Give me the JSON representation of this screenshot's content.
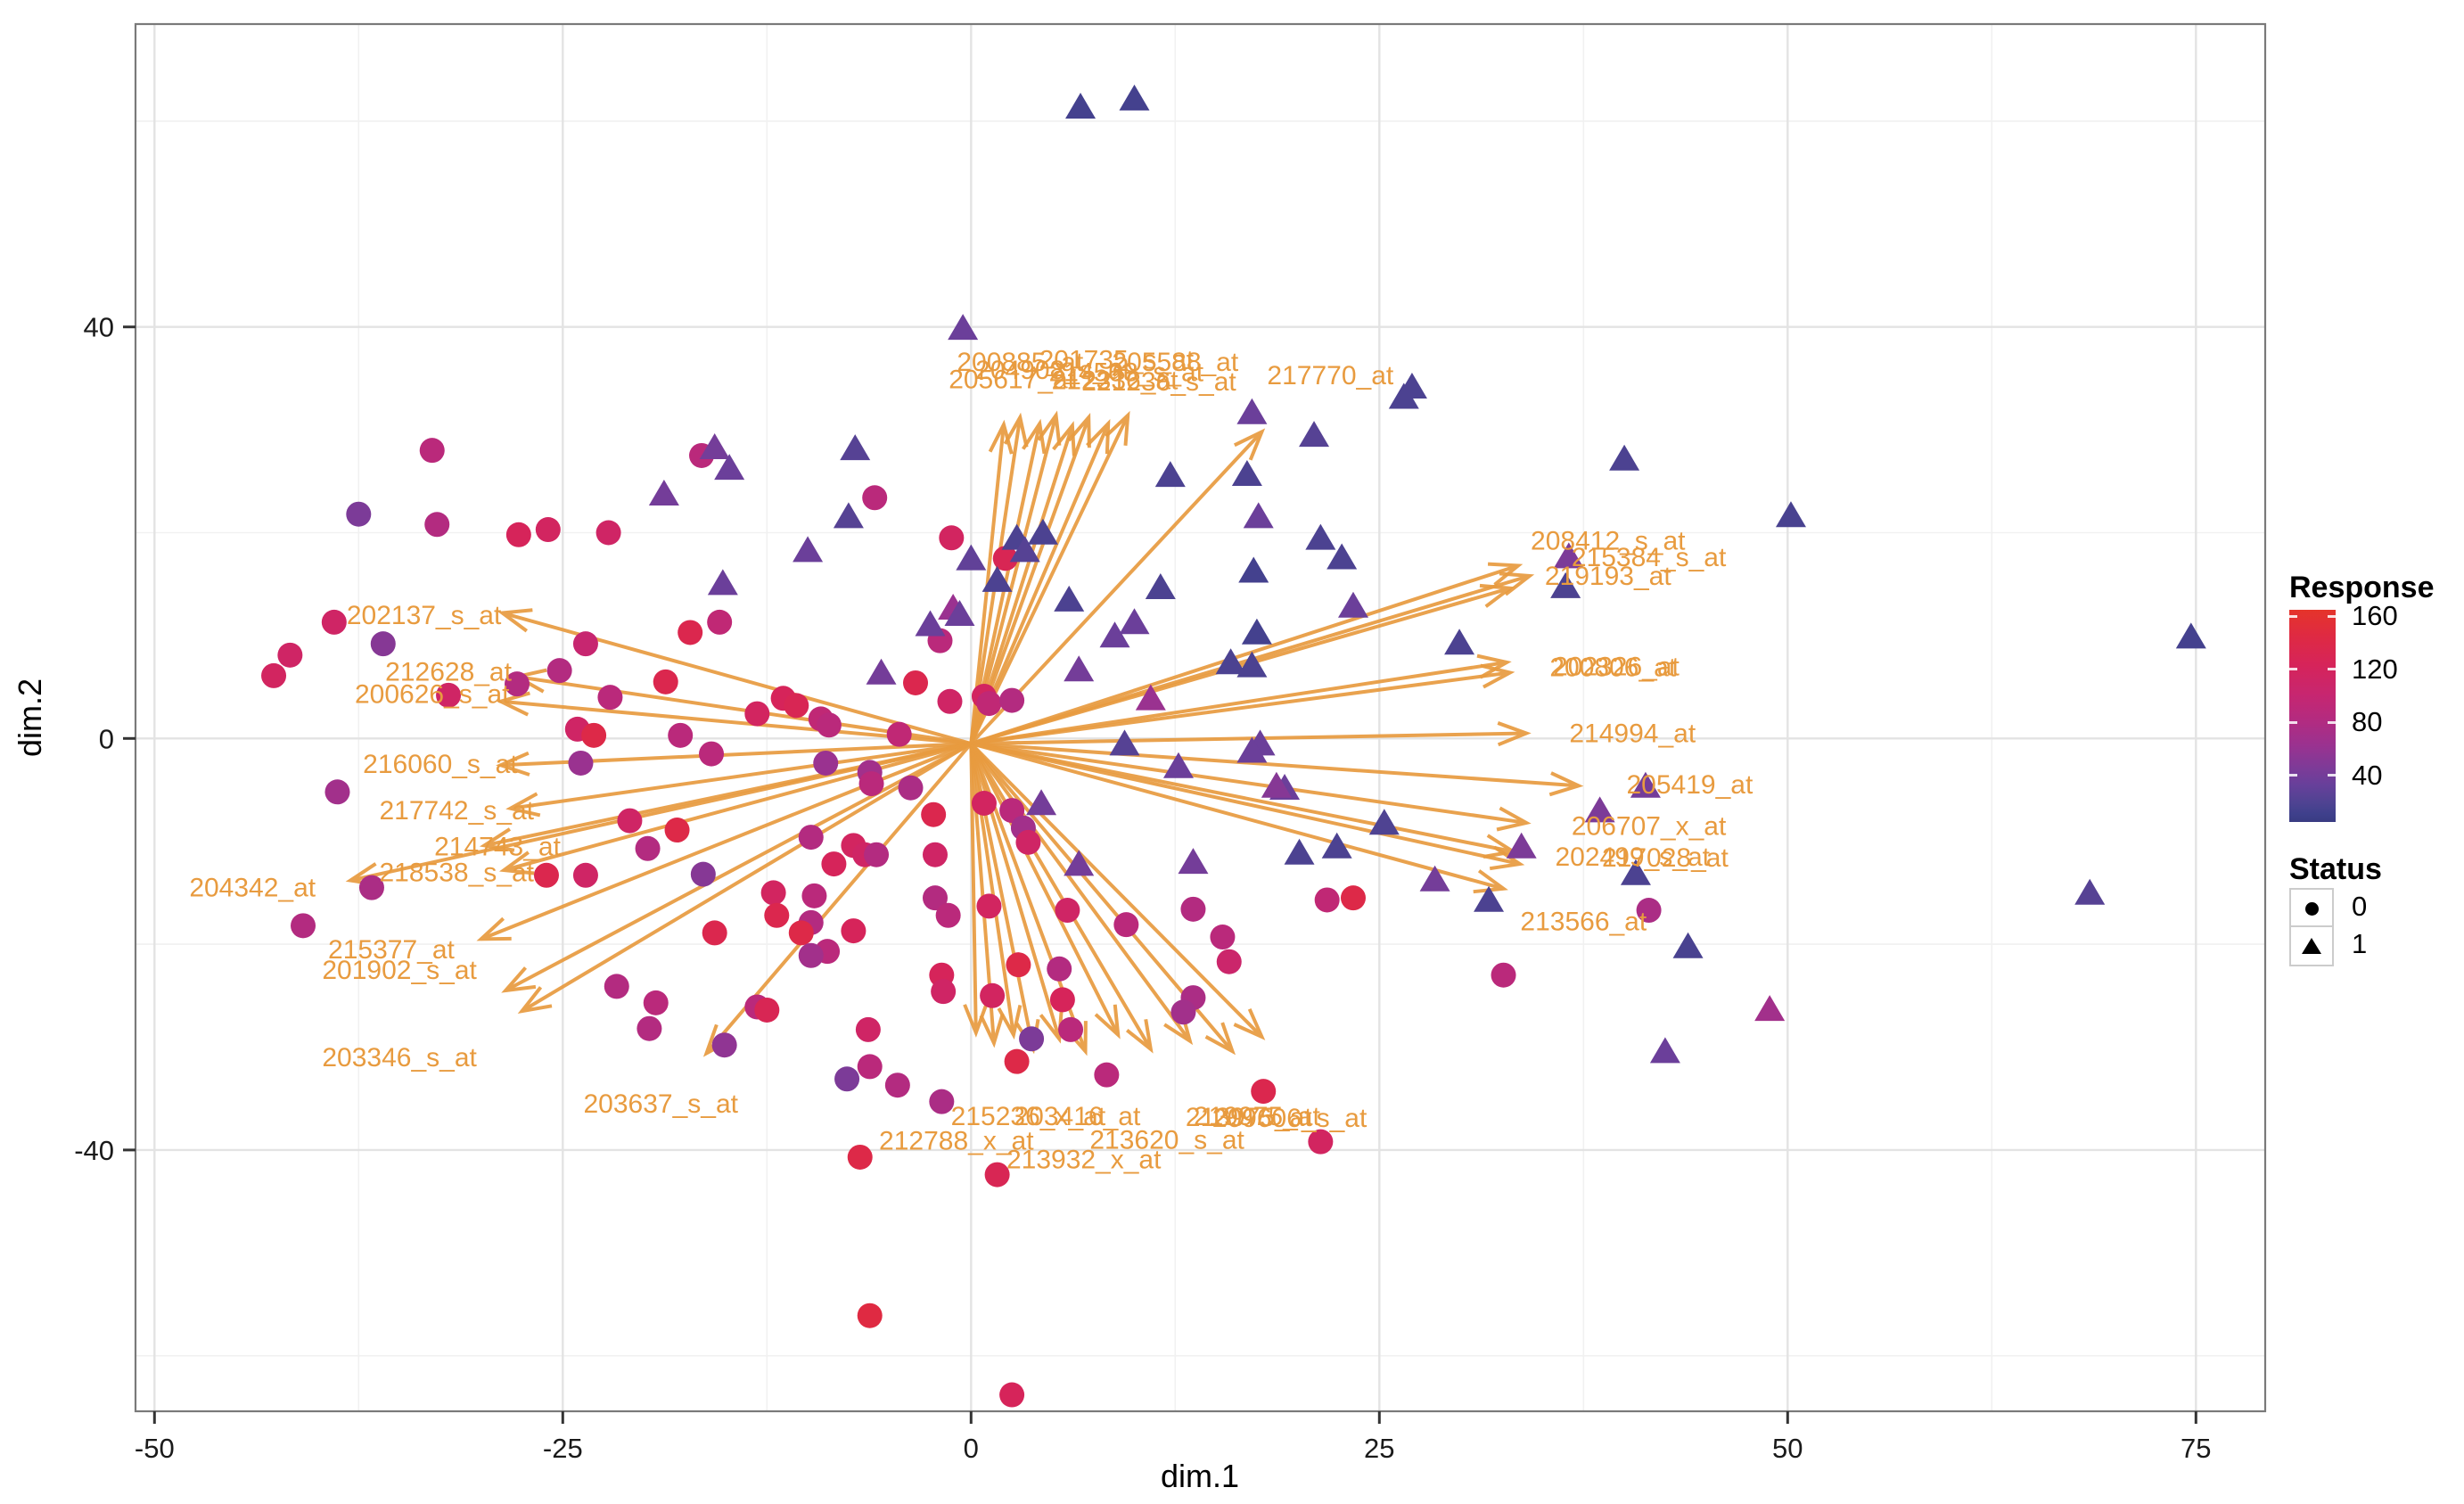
{
  "chart_data": {
    "type": "scatter",
    "title": "",
    "xlabel": "dim.1",
    "ylabel": "dim.2",
    "x_ticks": [
      -50,
      -25,
      0,
      25,
      50,
      75
    ],
    "y_ticks": [
      -40,
      0,
      40
    ],
    "x_minor": [
      -37.5,
      -12.5,
      12.5,
      37.5,
      62.5
    ],
    "y_minor": [
      -60,
      -20,
      20,
      60
    ],
    "xlim": [
      -51.2,
      79.2
    ],
    "ylim": [
      -65.4,
      69.4
    ],
    "grid": true,
    "legend_position": "right",
    "panel": {
      "background": "#FFFFFF",
      "border": "#7A7A7A",
      "grid_major": "#E3E3E3",
      "grid_minor": "#F1F1F1"
    },
    "response_scale": {
      "title": "Response",
      "ticks": [
        160,
        120,
        80,
        40
      ],
      "domain": [
        5,
        165
      ],
      "gradient_stops": [
        [
          165,
          "#E5342A"
        ],
        [
          140,
          "#DF2A42"
        ],
        [
          120,
          "#D6245A"
        ],
        [
          100,
          "#C72670"
        ],
        [
          85,
          "#B32B80"
        ],
        [
          70,
          "#9A3290"
        ],
        [
          55,
          "#7C3B98"
        ],
        [
          42,
          "#66409A"
        ],
        [
          32,
          "#4F4392"
        ],
        [
          22,
          "#3F408C"
        ],
        [
          5,
          "#393B82"
        ]
      ]
    },
    "status_legend": {
      "title": "Status",
      "items": [
        {
          "label": "0",
          "shape": "circle"
        },
        {
          "label": "1",
          "shape": "triangle"
        }
      ]
    },
    "arrow_color": "#E89B3F",
    "label_color": "#E89B3F",
    "arrow_origin": [
      0,
      -0.5
    ],
    "points": [
      [
        -33,
        28,
        90,
        0
      ],
      [
        -37.5,
        21.8,
        55,
        0
      ],
      [
        -32.7,
        20.8,
        85,
        0
      ],
      [
        -27.7,
        19.8,
        120,
        0
      ],
      [
        -25.9,
        20.3,
        115,
        0
      ],
      [
        -22.2,
        20,
        110,
        0
      ],
      [
        -16.5,
        27.5,
        90,
        0
      ],
      [
        -39,
        11.3,
        110,
        0
      ],
      [
        -36,
        9.2,
        60,
        0
      ],
      [
        -41.7,
        8.1,
        110,
        0
      ],
      [
        -42.7,
        6.1,
        115,
        0
      ],
      [
        -32,
        4.2,
        110,
        0
      ],
      [
        -38.8,
        -5.2,
        75,
        0
      ],
      [
        -36.7,
        -14.5,
        80,
        0
      ],
      [
        -40.9,
        -18.2,
        85,
        0
      ],
      [
        -23.6,
        9.2,
        100,
        0
      ],
      [
        -25.2,
        6.6,
        85,
        0
      ],
      [
        -27.8,
        5.3,
        85,
        0
      ],
      [
        -22.1,
        4,
        90,
        0
      ],
      [
        -18.7,
        5.5,
        130,
        0
      ],
      [
        -17.2,
        10.3,
        130,
        0
      ],
      [
        -15.4,
        11.3,
        95,
        0
      ],
      [
        -24.1,
        0.9,
        110,
        0
      ],
      [
        -23.1,
        0.3,
        135,
        0
      ],
      [
        -17.8,
        0.3,
        90,
        0
      ],
      [
        -23.9,
        -2.4,
        70,
        0
      ],
      [
        -15.9,
        -1.5,
        90,
        0
      ],
      [
        -20.9,
        -8,
        110,
        0
      ],
      [
        -18,
        -8.9,
        135,
        0
      ],
      [
        -19.8,
        -10.7,
        85,
        0
      ],
      [
        -26,
        -13.3,
        130,
        0
      ],
      [
        -23.6,
        -13.3,
        110,
        0
      ],
      [
        -16.4,
        -13.2,
        60,
        0
      ],
      [
        -13.1,
        2.4,
        115,
        0
      ],
      [
        -11.5,
        3.9,
        120,
        0
      ],
      [
        -10.7,
        3.2,
        125,
        0
      ],
      [
        -9.2,
        1.9,
        95,
        0
      ],
      [
        -8.7,
        1.3,
        90,
        0
      ],
      [
        -4.4,
        0.4,
        95,
        0
      ],
      [
        -8.9,
        -2.4,
        70,
        0
      ],
      [
        -6.2,
        -3.3,
        75,
        0
      ],
      [
        -6.1,
        -4.4,
        90,
        0
      ],
      [
        -3.7,
        -4.8,
        80,
        0
      ],
      [
        -1.9,
        9.5,
        90,
        0
      ],
      [
        -3.4,
        5.4,
        130,
        0
      ],
      [
        -1.3,
        3.6,
        110,
        0
      ],
      [
        0.8,
        4.1,
        115,
        0
      ],
      [
        1.1,
        3.4,
        95,
        0
      ],
      [
        2.5,
        3.7,
        85,
        0
      ],
      [
        0.8,
        -6.3,
        115,
        0
      ],
      [
        -2.3,
        -7.4,
        130,
        0
      ],
      [
        2.5,
        -7,
        90,
        0
      ],
      [
        3.2,
        -8.7,
        75,
        0
      ],
      [
        3.5,
        -10.1,
        110,
        0
      ],
      [
        -7.2,
        -10.4,
        115,
        0
      ],
      [
        -6.5,
        -11.3,
        110,
        0
      ],
      [
        -5.8,
        -11.3,
        85,
        0
      ],
      [
        -8.4,
        -12.2,
        120,
        0
      ],
      [
        -2.2,
        -11.3,
        110,
        0
      ],
      [
        -9.8,
        -9.6,
        85,
        0
      ],
      [
        -12.1,
        -15,
        115,
        0
      ],
      [
        -11.9,
        -17.2,
        130,
        0
      ],
      [
        -9.6,
        -15.3,
        90,
        0
      ],
      [
        -9.8,
        -17.9,
        85,
        0
      ],
      [
        -10.4,
        -18.9,
        135,
        0
      ],
      [
        -8.8,
        -20.7,
        90,
        0
      ],
      [
        -9.8,
        -21.1,
        75,
        0
      ],
      [
        -7.2,
        -18.7,
        120,
        0
      ],
      [
        -2.2,
        -15.5,
        85,
        0
      ],
      [
        -1.4,
        -17.2,
        90,
        0
      ],
      [
        1.1,
        -16.3,
        115,
        0
      ],
      [
        -1.8,
        -23,
        120,
        0
      ],
      [
        1.3,
        -25,
        115,
        0
      ],
      [
        5.4,
        -22.4,
        85,
        0
      ],
      [
        5.6,
        -25.4,
        120,
        0
      ],
      [
        9.5,
        -18.1,
        90,
        0
      ],
      [
        15.8,
        -21.7,
        105,
        0
      ],
      [
        13.6,
        -25.2,
        80,
        0
      ],
      [
        3.7,
        -29.2,
        55,
        0
      ],
      [
        2.8,
        -31.4,
        135,
        0
      ],
      [
        -7.6,
        -33.1,
        55,
        0
      ],
      [
        -13.1,
        -26.1,
        90,
        0
      ],
      [
        -12.5,
        -26.4,
        125,
        0
      ],
      [
        -1.8,
        -35.3,
        80,
        0
      ],
      [
        -6.3,
        -28.3,
        110,
        0
      ],
      [
        -1.7,
        -24.6,
        110,
        0
      ],
      [
        -6.2,
        -31.9,
        90,
        0
      ],
      [
        -4.5,
        -33.7,
        85,
        0
      ],
      [
        2.9,
        -22,
        135,
        0
      ],
      [
        5.9,
        -16.7,
        110,
        0
      ],
      [
        6.1,
        -28.3,
        90,
        0
      ],
      [
        8.3,
        -32.7,
        90,
        0
      ],
      [
        13.6,
        -16.6,
        85,
        0
      ],
      [
        13,
        -26.6,
        75,
        0
      ],
      [
        17.9,
        -34.3,
        130,
        0
      ],
      [
        21.4,
        -39.2,
        115,
        0
      ],
      [
        -6.8,
        -40.7,
        135,
        0
      ],
      [
        1.6,
        -42.4,
        125,
        0
      ],
      [
        -6.2,
        -56.1,
        140,
        0
      ],
      [
        2.5,
        -63.8,
        120,
        0
      ],
      [
        21.8,
        -15.7,
        95,
        0
      ],
      [
        23.4,
        -15.5,
        135,
        0
      ],
      [
        15.4,
        -19.3,
        90,
        0
      ],
      [
        32.6,
        -23,
        90,
        0
      ],
      [
        41.5,
        -16.7,
        80,
        0
      ],
      [
        -15.7,
        -18.9,
        130,
        0
      ],
      [
        -21.7,
        -24.1,
        85,
        0
      ],
      [
        -19.3,
        -25.7,
        90,
        0
      ],
      [
        -19.7,
        -28.2,
        85,
        0
      ],
      [
        -15.1,
        -29.8,
        65,
        0
      ],
      [
        -1.2,
        19.5,
        115,
        0
      ],
      [
        2.1,
        17.5,
        125,
        0
      ],
      [
        -5.9,
        23.4,
        90,
        0
      ],
      [
        6.7,
        61.2,
        25,
        1
      ],
      [
        10,
        62,
        25,
        1
      ],
      [
        -0.5,
        39.7,
        45,
        1
      ],
      [
        -7.1,
        28,
        35,
        1
      ],
      [
        -15.7,
        28.1,
        50,
        1
      ],
      [
        -14.8,
        26.1,
        45,
        1
      ],
      [
        -18.8,
        23.6,
        50,
        1
      ],
      [
        -10,
        18.1,
        45,
        1
      ],
      [
        -7.5,
        21.4,
        35,
        1
      ],
      [
        0,
        17.3,
        40,
        1
      ],
      [
        -1.1,
        12.5,
        70,
        1
      ],
      [
        2.8,
        19.3,
        30,
        1
      ],
      [
        3.3,
        18.1,
        35,
        1
      ],
      [
        4.4,
        19.8,
        30,
        1
      ],
      [
        12.2,
        25.4,
        30,
        1
      ],
      [
        1.6,
        15.2,
        30,
        1
      ],
      [
        -2.5,
        10.9,
        45,
        1
      ],
      [
        -0.7,
        11.9,
        45,
        1
      ],
      [
        -5.5,
        6.2,
        50,
        1
      ],
      [
        8.8,
        9.8,
        45,
        1
      ],
      [
        10,
        11.1,
        45,
        1
      ],
      [
        6.6,
        6.5,
        50,
        1
      ],
      [
        11,
        3.7,
        70,
        1
      ],
      [
        15.9,
        7.2,
        30,
        1
      ],
      [
        17.2,
        6.9,
        30,
        1
      ],
      [
        9.4,
        -0.7,
        35,
        1
      ],
      [
        12.7,
        -2.9,
        45,
        1
      ],
      [
        17.7,
        -0.7,
        45,
        1
      ],
      [
        19.2,
        -5,
        45,
        1
      ],
      [
        4.3,
        -6.5,
        50,
        1
      ],
      [
        6.6,
        -12.4,
        50,
        1
      ],
      [
        13.6,
        -12.2,
        50,
        1
      ],
      [
        20.1,
        -11.3,
        30,
        1
      ],
      [
        17.6,
        21.4,
        45,
        1
      ],
      [
        21.4,
        19.3,
        30,
        1
      ],
      [
        17.3,
        16.1,
        25,
        1
      ],
      [
        17.5,
        10.1,
        25,
        1
      ],
      [
        26.5,
        33,
        30,
        1
      ],
      [
        17.2,
        31.5,
        45,
        1
      ],
      [
        21,
        29.3,
        35,
        1
      ],
      [
        16.9,
        25.5,
        30,
        1
      ],
      [
        22.7,
        17.4,
        30,
        1
      ],
      [
        23.4,
        12.7,
        45,
        1
      ],
      [
        40,
        27,
        30,
        1
      ],
      [
        50.2,
        21.5,
        28,
        1
      ],
      [
        36.6,
        17.5,
        55,
        1
      ],
      [
        36.4,
        14.6,
        30,
        1
      ],
      [
        29.9,
        9.1,
        30,
        1
      ],
      [
        17.2,
        -1.4,
        45,
        1
      ],
      [
        18.7,
        -4.8,
        60,
        1
      ],
      [
        41.3,
        -4.8,
        50,
        1
      ],
      [
        38.5,
        -7.2,
        55,
        1
      ],
      [
        22.4,
        -10.7,
        30,
        1
      ],
      [
        25.3,
        -8.4,
        32,
        1
      ],
      [
        28.4,
        -13.9,
        50,
        1
      ],
      [
        33.7,
        -10.7,
        55,
        1
      ],
      [
        31.7,
        -15.9,
        30,
        1
      ],
      [
        40.7,
        -13.3,
        30,
        1
      ],
      [
        43.9,
        -20.4,
        28,
        1
      ],
      [
        48.9,
        -26.5,
        75,
        1
      ],
      [
        42.5,
        -30.6,
        45,
        1
      ],
      [
        68.5,
        -15.2,
        35,
        1
      ],
      [
        74.7,
        9.7,
        25,
        1
      ],
      [
        27,
        34,
        30,
        1
      ],
      [
        6,
        13.3,
        30,
        1
      ],
      [
        11.6,
        14.5,
        30,
        1
      ],
      [
        -15.2,
        14.9,
        45,
        1
      ]
    ],
    "arrows": [
      [
        -28.7,
        12.2
      ],
      [
        -27.8,
        6
      ],
      [
        -28.8,
        3.6
      ],
      [
        -28.8,
        -2.6
      ],
      [
        -28.2,
        -6.8
      ],
      [
        -29.8,
        -10.4
      ],
      [
        -28.6,
        -12.8
      ],
      [
        -38,
        -13.8
      ],
      [
        -30,
        -19.5
      ],
      [
        -28.5,
        -24.5
      ],
      [
        -27.5,
        -26.5
      ],
      [
        -16.2,
        -30.6
      ],
      [
        33.5,
        16.8
      ],
      [
        34.2,
        15.8
      ],
      [
        33,
        14.6
      ],
      [
        32.8,
        7.4
      ],
      [
        33,
        6.4
      ],
      [
        34,
        0.5
      ],
      [
        37.2,
        -4.6
      ],
      [
        34,
        -8.2
      ],
      [
        33.2,
        -11
      ],
      [
        33.6,
        -12.2
      ],
      [
        32.6,
        -14.6
      ],
      [
        17.8,
        29.8
      ],
      [
        2,
        30.5
      ],
      [
        3,
        31.2
      ],
      [
        4.2,
        30.6
      ],
      [
        5.2,
        31.4
      ],
      [
        6.2,
        30.4
      ],
      [
        7.2,
        31.2
      ],
      [
        8.4,
        30.6
      ],
      [
        9.6,
        31.4
      ],
      [
        0.3,
        -28.6
      ],
      [
        1.4,
        -29.6
      ],
      [
        2.6,
        -28.8
      ],
      [
        3.8,
        -30.2
      ],
      [
        5.4,
        -29.2
      ],
      [
        7,
        -30.4
      ],
      [
        9,
        -28.8
      ],
      [
        11,
        -30.2
      ],
      [
        13.4,
        -29.4
      ],
      [
        16,
        -30.4
      ],
      [
        17.8,
        -29
      ]
    ],
    "labels": [
      {
        "text": "202137_s_at",
        "x": -33.5,
        "y": 12
      },
      {
        "text": "212628_at",
        "x": -32,
        "y": 6.5
      },
      {
        "text": "200626_s_at",
        "x": -33,
        "y": 4.3
      },
      {
        "text": "216060_s_at",
        "x": -32.5,
        "y": -2.5
      },
      {
        "text": "217742_s_at",
        "x": -31.5,
        "y": -7
      },
      {
        "text": "214743_at",
        "x": -29,
        "y": -10.5
      },
      {
        "text": "218538_s_at",
        "x": -31.5,
        "y": -13
      },
      {
        "text": "204342_at",
        "x": -44,
        "y": -14.5
      },
      {
        "text": "215377_at",
        "x": -35.5,
        "y": -20.5
      },
      {
        "text": "201902_s_at",
        "x": -35,
        "y": -22.5
      },
      {
        "text": "203346_s_at",
        "x": -35,
        "y": -31
      },
      {
        "text": "203637_s_at",
        "x": -19,
        "y": -35.5
      },
      {
        "text": "200885_at",
        "x": 3,
        "y": 36.6
      },
      {
        "text": "201735_s_at",
        "x": 8.9,
        "y": 36.8
      },
      {
        "text": "205588_at",
        "x": 12.5,
        "y": 36.6
      },
      {
        "text": "204908_s_at",
        "x": 5,
        "y": 35.8
      },
      {
        "text": "214508_s_at",
        "x": 9.5,
        "y": 35.6
      },
      {
        "text": "205617_at",
        "x": 2.5,
        "y": 34.9
      },
      {
        "text": "212336_at",
        "x": 8.8,
        "y": 34.8
      },
      {
        "text": "221236_s_at",
        "x": 11.5,
        "y": 34.7
      },
      {
        "text": "217770_at",
        "x": 22,
        "y": 35.3
      },
      {
        "text": "208412_s_at",
        "x": 39,
        "y": 19.2
      },
      {
        "text": "215384_s_at",
        "x": 41.5,
        "y": 17.6
      },
      {
        "text": "219193_at",
        "x": 39,
        "y": 15.8
      },
      {
        "text": "202326_at",
        "x": 39.5,
        "y": 7
      },
      {
        "text": "200806_at",
        "x": 39.3,
        "y": 6.9
      },
      {
        "text": "214994_at",
        "x": 40.5,
        "y": 0.5
      },
      {
        "text": "205419_at",
        "x": 44,
        "y": -4.5
      },
      {
        "text": "206707_x_at",
        "x": 41.5,
        "y": -8.5
      },
      {
        "text": "202499_s_at",
        "x": 40.5,
        "y": -11.5
      },
      {
        "text": "217028_at",
        "x": 42.5,
        "y": -11.6
      },
      {
        "text": "213566_at",
        "x": 37.5,
        "y": -17.8
      },
      {
        "text": "215236_x_at",
        "x": 3.5,
        "y": -36.7
      },
      {
        "text": "203416_at",
        "x": 6.5,
        "y": -36.7
      },
      {
        "text": "219975_at",
        "x": 17.5,
        "y": -36.7
      },
      {
        "text": "213975_at",
        "x": 17,
        "y": -36.8
      },
      {
        "text": "209606_s_at",
        "x": 19.5,
        "y": -36.9
      },
      {
        "text": "213620_s_at",
        "x": 12,
        "y": -39
      },
      {
        "text": "212788_x_at",
        "x": -0.9,
        "y": -39.1
      },
      {
        "text": "213932_x_at",
        "x": 6.9,
        "y": -40.9
      }
    ]
  }
}
